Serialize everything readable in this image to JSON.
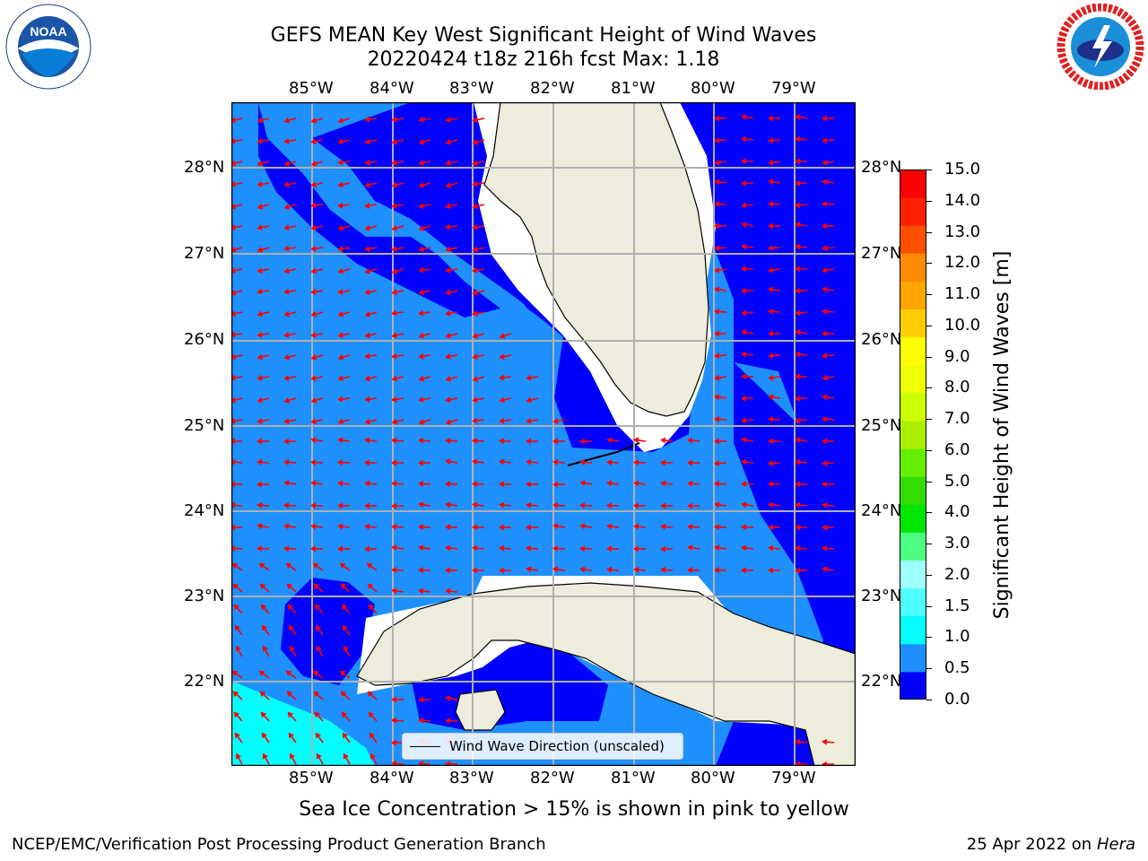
{
  "title": {
    "line1": "GEFS MEAN Key West Significant Height of Wind Waves",
    "line2": "20220424 t18z 216h fcst   Max: 1.18"
  },
  "map": {
    "lon_labels": [
      "85°W",
      "84°W",
      "83°W",
      "82°W",
      "81°W",
      "80°W",
      "79°W"
    ],
    "lat_labels": [
      "28°N",
      "27°N",
      "26°N",
      "25°N",
      "24°N",
      "23°N",
      "22°N"
    ],
    "legend_label": "Wind Wave Direction (unscaled)",
    "colors": {
      "land": "#eeecdc",
      "wave_0_0.5": "#0000ff",
      "wave_0.5_1.0": "#1e90ff",
      "wave_1.0_1.5": "#00ffff",
      "arrows": "#ff0000",
      "gridlines": "#b0b0b0"
    }
  },
  "colorbar": {
    "label": "Significant Height of Wind Waves [m]",
    "ticks": [
      "15.0",
      "14.0",
      "13.0",
      "12.0",
      "11.0",
      "10.0",
      "9.0",
      "8.0",
      "7.0",
      "6.0",
      "5.0",
      "4.0",
      "3.0",
      "2.0",
      "1.5",
      "1.0",
      "0.5",
      "0.0"
    ],
    "colors": [
      "#0000ff",
      "#1e90ff",
      "#00ffff",
      "#4dffff",
      "#a0ffff",
      "#4dff80",
      "#00e600",
      "#33dd00",
      "#66ee00",
      "#aaf000",
      "#ccff00",
      "#eeff00",
      "#ffff00",
      "#ffcc00",
      "#ffa500",
      "#ff8c00",
      "#ff5000",
      "#ff2000",
      "#ff0000"
    ]
  },
  "sea_ice_note": "Sea Ice Concentration > 15% is shown in pink to yellow",
  "footer": {
    "left": "NCEP/EMC/Verification Post Processing Product Generation Branch",
    "right_date": "25 Apr 2022 on",
    "right_host": "Hera"
  },
  "logos": {
    "noaa": "NOAA",
    "noaa_ring": "NATIONAL OCEANIC AND ATMOSPHERIC ADMINISTRATION · U.S. DEPARTMENT OF COMMERCE",
    "nws_ring": "NATIONAL WEATHER SERVICE"
  }
}
